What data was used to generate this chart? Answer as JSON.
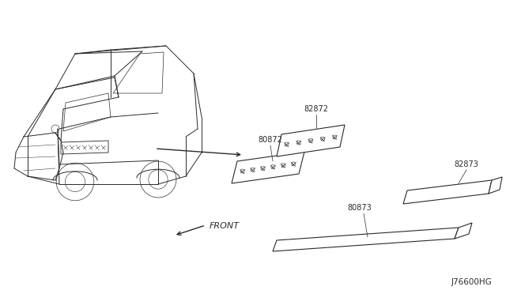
{
  "bg_color": "#ffffff",
  "line_color": "#2a2a2a",
  "diagram_id": "J76600HG",
  "labels": {
    "front_label": "FRONT",
    "part_80872": "80872",
    "part_82872": "82872",
    "part_80873": "80873",
    "part_82873": "82873"
  },
  "figsize": [
    6.4,
    3.72
  ],
  "dpi": 100
}
